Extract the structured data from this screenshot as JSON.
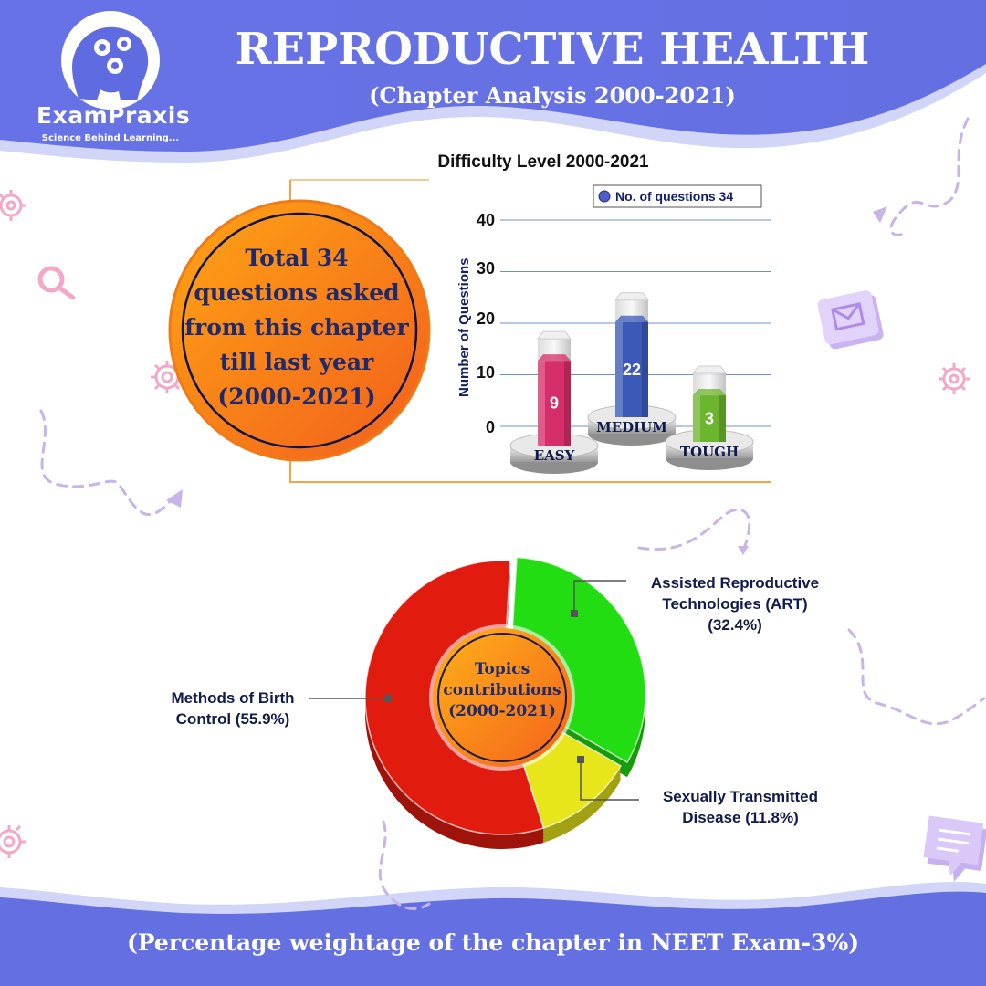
{
  "brand": {
    "name": "ExamPraxis",
    "tagline": "Science Behind Learning..."
  },
  "header": {
    "title": "REPRODUCTIVE HEALTH",
    "subtitle": "(Chapter Analysis 2000-2021)"
  },
  "summary": {
    "lines": [
      "Total 34",
      "questions asked",
      "from this chapter",
      "till last year",
      "(2000-2021)"
    ]
  },
  "footer": {
    "text": "(Percentage weightage of the chapter in NEET Exam-3%)"
  },
  "chart_data": [
    {
      "type": "bar",
      "title": "Difficulty Level 2000-2021",
      "ylabel": "Number of Questions",
      "xlabel": "",
      "categories": [
        "EASY",
        "MEDIUM",
        "TOUGH"
      ],
      "yticks": [
        "0",
        "10",
        "20",
        "30",
        "40"
      ],
      "ylim": [
        0,
        40
      ],
      "grid": true,
      "legend_position": "top-right",
      "series": [
        {
          "name": "No. of questions 34",
          "values": [
            9,
            22,
            3
          ],
          "data_labels": [
            "9",
            "22",
            "3"
          ]
        }
      ],
      "colors": {
        "EASY": "#d62e6a",
        "MEDIUM": "#3c59b8",
        "TOUGH": "#6cb52e",
        "legend": "#4f5fc9"
      }
    },
    {
      "type": "pie",
      "center_label": [
        "Topics",
        "contributions",
        "(2000-2021)"
      ],
      "slices": [
        {
          "label_lines": [
            "Assisted Reproductive",
            "Technologies (ART)",
            "(32.4%)"
          ],
          "value": 32.4,
          "color": "#22dd11"
        },
        {
          "label_lines": [
            "Sexually Transmitted",
            "Disease (11.8%)"
          ],
          "value": 11.8,
          "color": "#e6e61a"
        },
        {
          "label_lines": [
            "Methods of Birth",
            "Control (55.9%)"
          ],
          "value": 55.9,
          "color": "#e11b0e"
        }
      ]
    }
  ],
  "colors": {
    "header_band": "#6573e3",
    "accent_orange": "#f5901e",
    "text_navy": "#1e2a6a",
    "decor_lavender": "#c7b4ea"
  },
  "icons": [
    "brain-gears-logo-icon",
    "gear-icon",
    "magnifier-icon",
    "mail-icon",
    "chat-bubble-icon"
  ]
}
